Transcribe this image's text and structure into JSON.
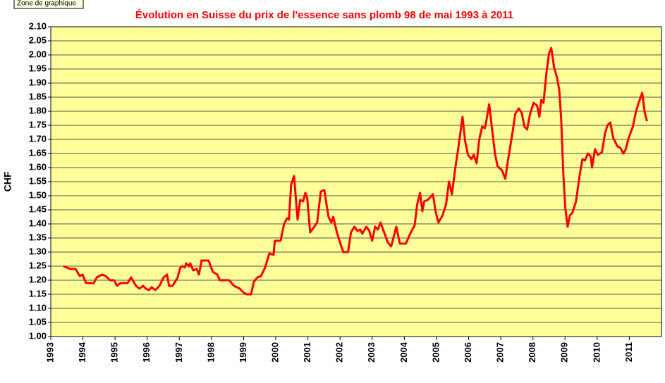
{
  "tooltip": "Zone de graphique",
  "chart_data": {
    "type": "line",
    "title": "Évolution en Suisse du prix de l'essence sans plomb 98 de mai 1993 à 2011",
    "ylabel": "CHF",
    "xlim": [
      1993,
      2012
    ],
    "xticks": [
      1993,
      1994,
      1995,
      1996,
      1997,
      1998,
      1999,
      2000,
      2001,
      2002,
      2003,
      2004,
      2005,
      2006,
      2007,
      2008,
      2009,
      2010,
      2011
    ],
    "ylim": [
      1.0,
      2.1
    ],
    "yticks": [
      {
        "value": 1.0,
        "label": "1.00"
      },
      {
        "value": 1.05,
        "label": "1.05"
      },
      {
        "value": 1.1,
        "label": "1.10"
      },
      {
        "value": 1.15,
        "label": "1.15"
      },
      {
        "value": 1.2,
        "label": "1.20"
      },
      {
        "value": 1.25,
        "label": "1.25"
      },
      {
        "value": 1.3,
        "label": "1.30"
      },
      {
        "value": 1.35,
        "label": "1.35"
      },
      {
        "value": 1.4,
        "label": "1.40"
      },
      {
        "value": 1.45,
        "label": "1.45"
      },
      {
        "value": 1.5,
        "label": "1.50"
      },
      {
        "value": 1.55,
        "label": "1.55"
      },
      {
        "value": 1.6,
        "label": "1.60"
      },
      {
        "value": 1.65,
        "label": "1.65"
      },
      {
        "value": 1.7,
        "label": "1.70"
      },
      {
        "value": 1.75,
        "label": "1.75"
      },
      {
        "value": 1.8,
        "label": "1.80"
      },
      {
        "value": 1.85,
        "label": "1.85"
      },
      {
        "value": 1.9,
        "label": "1.90"
      },
      {
        "value": 1.95,
        "label": "1.95"
      },
      {
        "value": 2.0,
        "label": "2.00"
      },
      {
        "value": 2.05,
        "label": "2.05"
      },
      {
        "value": 2.1,
        "label": "2.10"
      }
    ],
    "grid": true,
    "background": "#ffff99",
    "x": [
      1993.39,
      1993.61,
      1993.77,
      1993.9,
      1993.99,
      1994.1,
      1994.34,
      1994.43,
      1994.6,
      1994.71,
      1994.84,
      1994.97,
      1995.06,
      1995.17,
      1995.39,
      1995.5,
      1995.65,
      1995.76,
      1995.87,
      1995.96,
      1996.05,
      1996.14,
      1996.25,
      1996.38,
      1996.51,
      1996.62,
      1996.68,
      1996.79,
      1996.95,
      1997.03,
      1997.1,
      1997.17,
      1997.21,
      1997.3,
      1997.34,
      1997.43,
      1997.54,
      1997.61,
      1997.69,
      1997.91,
      1998.04,
      1998.18,
      1998.26,
      1998.55,
      1998.7,
      1998.88,
      1999.01,
      1999.1,
      1999.23,
      1999.32,
      1999.43,
      1999.54,
      1999.67,
      1999.8,
      1999.93,
      1999.97,
      2000.15,
      2000.26,
      2000.35,
      2000.41,
      2000.48,
      2000.57,
      2000.68,
      2000.76,
      2000.85,
      2000.92,
      2000.98,
      2001.07,
      2001.2,
      2001.29,
      2001.4,
      2001.51,
      2001.64,
      2001.73,
      2001.79,
      2001.9,
      2002.01,
      2002.1,
      2002.25,
      2002.34,
      2002.45,
      2002.54,
      2002.63,
      2002.69,
      2002.82,
      2002.91,
      2003.0,
      2003.09,
      2003.18,
      2003.26,
      2003.37,
      2003.48,
      2003.59,
      2003.75,
      2003.86,
      2004.05,
      2004.18,
      2004.32,
      2004.4,
      2004.49,
      2004.56,
      2004.62,
      2004.73,
      2004.89,
      2004.97,
      2005.06,
      2005.19,
      2005.3,
      2005.39,
      2005.48,
      2005.57,
      2005.68,
      2005.81,
      2005.89,
      2005.98,
      2006.09,
      2006.16,
      2006.25,
      2006.33,
      2006.42,
      2006.51,
      2006.64,
      2006.71,
      2006.82,
      2006.9,
      2007.04,
      2007.14,
      2007.23,
      2007.36,
      2007.45,
      2007.56,
      2007.65,
      2007.74,
      2007.82,
      2007.91,
      2008.02,
      2008.13,
      2008.2,
      2008.26,
      2008.33,
      2008.42,
      2008.5,
      2008.57,
      2008.66,
      2008.75,
      2008.82,
      2008.88,
      2008.95,
      2009.01,
      2009.08,
      2009.15,
      2009.23,
      2009.34,
      2009.45,
      2009.54,
      2009.62,
      2009.71,
      2009.8,
      2009.84,
      2009.93,
      2010.02,
      2010.15,
      2010.24,
      2010.32,
      2010.41,
      2010.5,
      2010.63,
      2010.72,
      2010.81,
      2010.89,
      2010.98,
      2011.11,
      2011.2,
      2011.29,
      2011.4,
      2011.48,
      2011.55
    ],
    "series": [
      {
        "name": "CHF",
        "color": "#ff0000",
        "values": [
          1.25,
          1.24,
          1.24,
          1.215,
          1.22,
          1.19,
          1.19,
          1.21,
          1.22,
          1.215,
          1.2,
          1.2,
          1.18,
          1.19,
          1.19,
          1.21,
          1.18,
          1.17,
          1.18,
          1.17,
          1.165,
          1.175,
          1.165,
          1.18,
          1.21,
          1.22,
          1.18,
          1.18,
          1.21,
          1.245,
          1.25,
          1.245,
          1.26,
          1.25,
          1.26,
          1.235,
          1.24,
          1.22,
          1.27,
          1.27,
          1.23,
          1.22,
          1.2,
          1.2,
          1.18,
          1.17,
          1.155,
          1.15,
          1.15,
          1.195,
          1.21,
          1.215,
          1.245,
          1.295,
          1.29,
          1.34,
          1.34,
          1.4,
          1.42,
          1.415,
          1.54,
          1.57,
          1.415,
          1.485,
          1.48,
          1.51,
          1.49,
          1.37,
          1.39,
          1.405,
          1.515,
          1.52,
          1.425,
          1.405,
          1.425,
          1.37,
          1.33,
          1.3,
          1.3,
          1.37,
          1.39,
          1.375,
          1.38,
          1.365,
          1.39,
          1.375,
          1.34,
          1.39,
          1.38,
          1.405,
          1.37,
          1.335,
          1.32,
          1.39,
          1.33,
          1.33,
          1.365,
          1.395,
          1.47,
          1.51,
          1.445,
          1.48,
          1.485,
          1.505,
          1.445,
          1.405,
          1.43,
          1.47,
          1.55,
          1.505,
          1.585,
          1.67,
          1.78,
          1.695,
          1.645,
          1.63,
          1.645,
          1.615,
          1.7,
          1.745,
          1.74,
          1.825,
          1.755,
          1.65,
          1.605,
          1.59,
          1.56,
          1.63,
          1.72,
          1.79,
          1.81,
          1.795,
          1.745,
          1.735,
          1.79,
          1.83,
          1.82,
          1.78,
          1.84,
          1.83,
          1.935,
          2.005,
          2.025,
          1.955,
          1.92,
          1.875,
          1.77,
          1.57,
          1.455,
          1.39,
          1.43,
          1.44,
          1.48,
          1.57,
          1.63,
          1.625,
          1.65,
          1.64,
          1.6,
          1.665,
          1.645,
          1.655,
          1.72,
          1.75,
          1.76,
          1.705,
          1.675,
          1.67,
          1.65,
          1.665,
          1.705,
          1.745,
          1.795,
          1.83,
          1.865,
          1.795,
          1.765
        ]
      }
    ]
  }
}
